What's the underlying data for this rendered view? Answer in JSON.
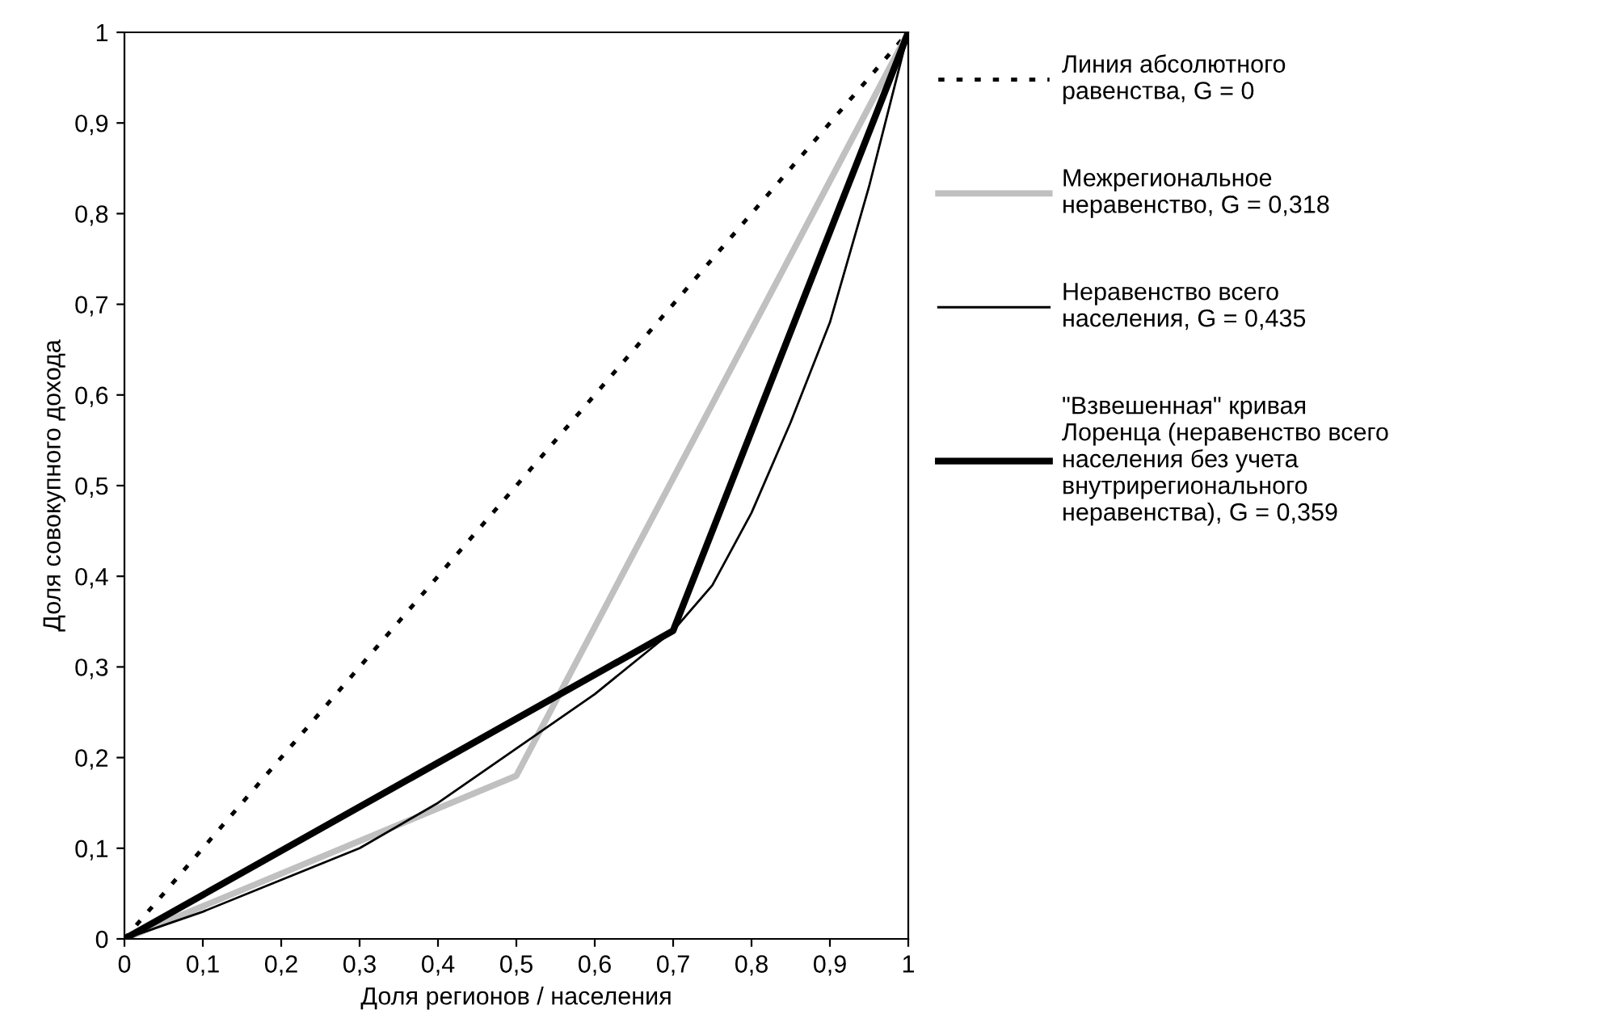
{
  "chart_data": {
    "type": "line",
    "xlabel": "Доля регионов / населения",
    "ylabel": "Доля совокупного дохода",
    "legend": "right",
    "grid": false,
    "xlim": [
      0,
      1
    ],
    "ylim": [
      0,
      1
    ],
    "xticks": [
      0,
      {
        "value": 0.1,
        "label": "0,1"
      },
      {
        "value": 0.2,
        "label": "0,2"
      },
      {
        "value": 0.3,
        "label": "0,3"
      },
      {
        "value": 0.4,
        "label": "0,4"
      },
      {
        "value": 0.5,
        "label": "0,5"
      },
      {
        "value": 0.6,
        "label": "0,6"
      },
      {
        "value": 0.7,
        "label": "0,7"
      },
      {
        "value": 0.8,
        "label": "0,8"
      },
      {
        "value": 0.9,
        "label": "0,9"
      },
      1
    ],
    "yticks": [
      0,
      {
        "value": 0.1,
        "label": "0,1"
      },
      {
        "value": 0.2,
        "label": "0,2"
      },
      {
        "value": 0.3,
        "label": "0,3"
      },
      {
        "value": 0.4,
        "label": "0,4"
      },
      {
        "value": 0.5,
        "label": "0,5"
      },
      {
        "value": 0.6,
        "label": "0,6"
      },
      {
        "value": 0.7,
        "label": "0,7"
      },
      {
        "value": 0.8,
        "label": "0,8"
      },
      {
        "value": 0.9,
        "label": "0,9"
      },
      1
    ],
    "series": [
      {
        "name": "Линия абсолютного\nравенства, G = 0",
        "color": "#000000",
        "line_style": "dotted",
        "x": [
          0,
          1
        ],
        "values": [
          0,
          1
        ]
      },
      {
        "name": "Межрегиональное\nнеравенство, G = 0,318",
        "color": "#c0c0c0",
        "line_style": "solid",
        "x": [
          0,
          0.5,
          1
        ],
        "values": [
          0,
          0.18,
          1
        ]
      },
      {
        "name": "Неравенство всего\nнаселения, G = 0,435",
        "color": "#000000",
        "line_style": "solid",
        "x": [
          0,
          0.05,
          0.1,
          0.2,
          0.3,
          0.4,
          0.5,
          0.6,
          0.7,
          0.75,
          0.8,
          0.85,
          0.9,
          0.95,
          1
        ],
        "values": [
          0,
          0.015,
          0.03,
          0.065,
          0.1,
          0.15,
          0.21,
          0.27,
          0.34,
          0.39,
          0.47,
          0.57,
          0.68,
          0.83,
          1
        ]
      },
      {
        "name": "\"Взвешенная\" кривая\nЛоренца (неравенство всего\nнаселения без учета\nвнутрирегионального\nнеравенства), G = 0,359",
        "color": "#000000",
        "line_style": "solid",
        "x": [
          0,
          0.7,
          1
        ],
        "values": [
          0,
          0.34,
          1
        ]
      }
    ]
  }
}
